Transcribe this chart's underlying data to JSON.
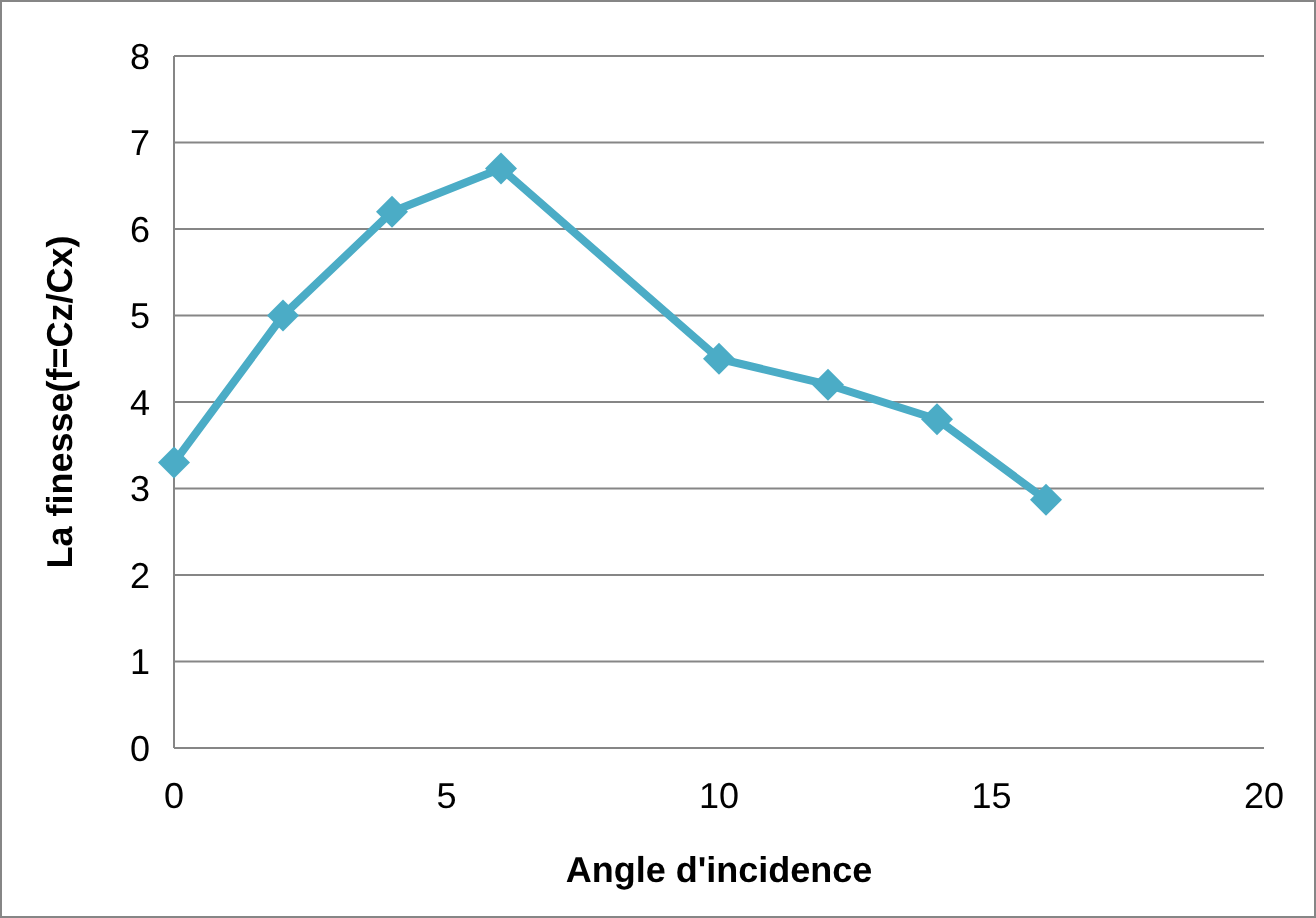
{
  "chart_data": {
    "type": "line",
    "xlabel": "Angle d'incidence",
    "ylabel": "La finesse(f=Cz/Cx)",
    "x": [
      0,
      2,
      4,
      6,
      10,
      12,
      14,
      16
    ],
    "series": [
      {
        "color": "#4bacc6",
        "values": [
          3.3,
          5.0,
          6.2,
          6.7,
          4.5,
          4.2,
          3.8,
          2.87
        ]
      }
    ],
    "xlim": [
      0,
      20
    ],
    "xticks": [
      0,
      5,
      10,
      15,
      20
    ],
    "ylim": [
      0,
      8
    ],
    "yticks": [
      0,
      1,
      2,
      3,
      4,
      5,
      6,
      7,
      8
    ],
    "grid": "y",
    "marker": "diamond",
    "line_style": "solid"
  }
}
